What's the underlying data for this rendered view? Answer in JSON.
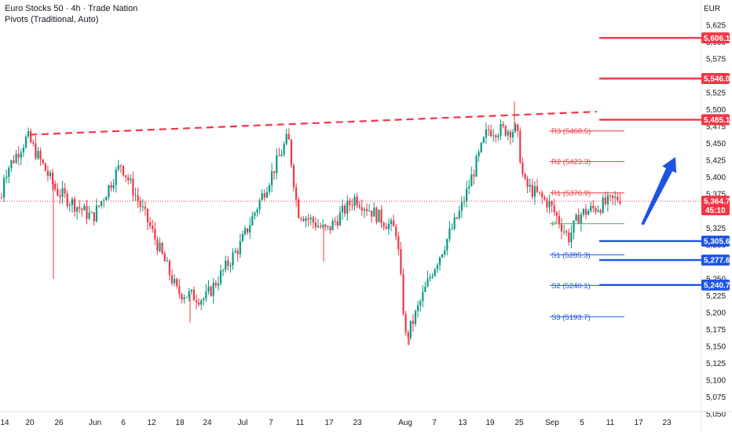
{
  "header": {
    "title": "Euro Stocks 50 · 4h · Trade Nation",
    "indicator": "Pivots (Traditional, Auto)",
    "currency": "EUR"
  },
  "chart_data": {
    "type": "candlestick",
    "ylim": [
      5040,
      5640
    ],
    "yticks": [
      5050,
      5075,
      5100,
      5125,
      5150,
      5175,
      5200,
      5225,
      5250,
      5275,
      5300,
      5325,
      5350,
      5375,
      5400,
      5425,
      5450,
      5475,
      5500,
      5525,
      5550,
      5575,
      5600,
      5625
    ],
    "xtick_labels": [
      "14",
      "20",
      "26",
      "Jun",
      "6",
      "12",
      "18",
      "24",
      "Jul",
      "7",
      "11",
      "17",
      "23",
      "Aug",
      "7",
      "13",
      "19",
      "25",
      "Sep",
      "5",
      "11",
      "17",
      "23"
    ],
    "current_price": {
      "value": 5364.7,
      "label": "5,364.7",
      "countdown": "45:10",
      "color": "#f23645"
    },
    "resistance_levels": [
      {
        "value": 5606.1,
        "label": "5,606.1",
        "color": "#f23645"
      },
      {
        "value": 5546.0,
        "label": "5,546.0",
        "color": "#f23645"
      },
      {
        "value": 5485.1,
        "label": "5,485.1",
        "color": "#f23645"
      }
    ],
    "support_levels": [
      {
        "value": 5305.6,
        "label": "5,305.6",
        "color": "#1e53e5"
      },
      {
        "value": 5277.6,
        "label": "5,277.6",
        "color": "#1e53e5"
      },
      {
        "value": 5240.7,
        "label": "5,240.7",
        "color": "#1e53e5"
      }
    ],
    "pivots": [
      {
        "name": "R3",
        "value": 5468.5,
        "label": "R3 (5468.5)",
        "color": "#f23645"
      },
      {
        "name": "R2",
        "value": 5423.3,
        "label": "R2 (5423.3)",
        "color": "#f23645"
      },
      {
        "name": "R1",
        "value": 5376.9,
        "label": "R1 (5376.9)",
        "color": "#f23645"
      },
      {
        "name": "P",
        "value": 5331.4,
        "label": "P",
        "color": "#4caf50"
      },
      {
        "name": "S1",
        "value": 5285.3,
        "label": "S1 (5285.3)",
        "color": "#1e53e5"
      },
      {
        "name": "S2",
        "value": 5240.1,
        "label": "S2 (5240.1)",
        "color": "#1e53e5"
      },
      {
        "name": "S3",
        "value": 5193.7,
        "label": "S3 (5193.7)",
        "color": "#1e53e5"
      }
    ],
    "trendline": {
      "from": {
        "date": "May 20",
        "value": 5463
      },
      "to": {
        "date": "Sep 11",
        "value": 5497
      },
      "style": "dashed",
      "color": "#f23645"
    },
    "arrow": {
      "from_value": 5330,
      "to_value": 5430,
      "direction": "up",
      "color": "#1e53e5"
    },
    "series_anchors": [
      {
        "date": "14",
        "value": 5400
      },
      {
        "date": "20",
        "value": 5460
      },
      {
        "date": "26",
        "value": 5380
      },
      {
        "date": "Jun",
        "value": 5340
      },
      {
        "date": "6",
        "value": 5420
      },
      {
        "date": "12",
        "value": 5330
      },
      {
        "date": "18",
        "value": 5230
      },
      {
        "date": "24",
        "value": 5220
      },
      {
        "date": "Jul",
        "value": 5300
      },
      {
        "date": "7",
        "value": 5460
      },
      {
        "date": "11",
        "value": 5350
      },
      {
        "date": "17",
        "value": 5320
      },
      {
        "date": "23",
        "value": 5370
      },
      {
        "date": "Aug",
        "value": 5320
      },
      {
        "date": "Aug 5",
        "value": 5160
      },
      {
        "date": "7",
        "value": 5260
      },
      {
        "date": "13",
        "value": 5350
      },
      {
        "date": "19",
        "value": 5470
      },
      {
        "date": "25",
        "value": 5470
      },
      {
        "date": "Aug 28",
        "value": 5390
      },
      {
        "date": "Sep",
        "value": 5360
      },
      {
        "date": "Sep 3",
        "value": 5310
      },
      {
        "date": "5",
        "value": 5345
      },
      {
        "date": "11",
        "value": 5370
      }
    ],
    "colors": {
      "up": "#089981",
      "down": "#f23645"
    }
  }
}
